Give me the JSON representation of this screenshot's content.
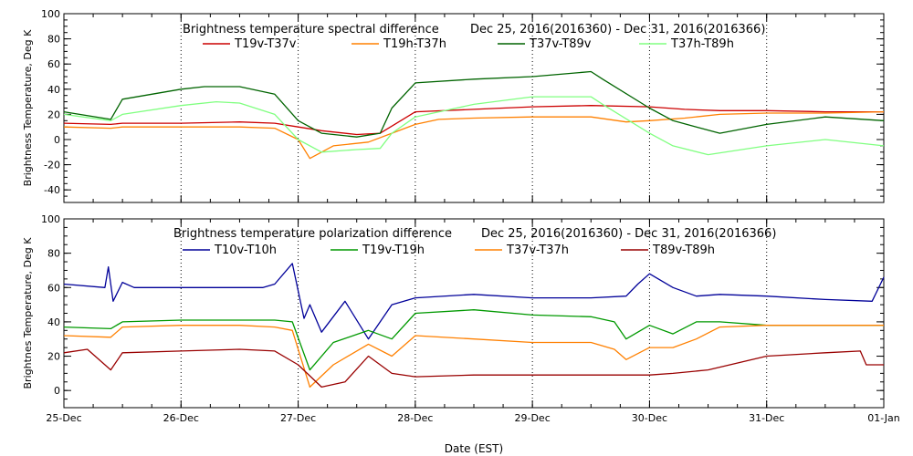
{
  "figure": {
    "xlabel": "Date (EST)"
  },
  "chart_data": [
    {
      "type": "line",
      "title": "Brightness temperature spectral difference",
      "date_range": "Dec 25, 2016(2016360) - Dec 31, 2016(2016366)",
      "ylabel": "Brightness Temperature, Deg K",
      "xlabel": "",
      "ylim": [
        -50,
        100
      ],
      "yticks": [
        -40,
        -20,
        0,
        20,
        40,
        60,
        80,
        100
      ],
      "xlim": [
        0,
        7
      ],
      "xticks": [
        0,
        1,
        2,
        3,
        4,
        5,
        6,
        7
      ],
      "xtick_labels": [
        "25-Dec",
        "26-Dec",
        "27-Dec",
        "28-Dec",
        "29-Dec",
        "30-Dec",
        "31-Dec",
        "01-Jan"
      ],
      "grid": "vertical dotted at day boundaries",
      "legend_position": "top",
      "series": [
        {
          "name": "T19v-T37v",
          "color": "#cc0000",
          "x": [
            0,
            0.4,
            0.5,
            1.0,
            1.5,
            1.8,
            2.0,
            2.2,
            2.5,
            2.7,
            3.0,
            3.5,
            4.0,
            4.5,
            5.0,
            5.3,
            5.6,
            6.0,
            6.5,
            7.0
          ],
          "y": [
            13,
            12,
            13,
            13,
            14,
            13,
            10,
            7,
            4,
            5,
            22,
            24,
            26,
            27,
            26,
            24,
            23,
            23,
            22,
            22
          ]
        },
        {
          "name": "T19h-T37h",
          "color": "#ff8000",
          "x": [
            0,
            0.4,
            0.5,
            1.0,
            1.5,
            1.8,
            2.0,
            2.1,
            2.3,
            2.6,
            2.8,
            3.0,
            3.2,
            3.5,
            4.0,
            4.5,
            4.8,
            5.0,
            5.3,
            5.6,
            6.0,
            6.5,
            7.0
          ],
          "y": [
            10,
            9,
            10,
            10,
            10,
            9,
            0,
            -15,
            -5,
            -2,
            5,
            12,
            16,
            17,
            18,
            18,
            14,
            15,
            17,
            20,
            21,
            21,
            22
          ]
        },
        {
          "name": "T37v-T89v",
          "color": "#006400",
          "x": [
            0,
            0.4,
            0.5,
            1.0,
            1.2,
            1.5,
            1.8,
            2.0,
            2.2,
            2.5,
            2.7,
            2.8,
            3.0,
            3.5,
            4.0,
            4.5,
            4.6,
            5.0,
            5.2,
            5.4,
            5.6,
            6.0,
            6.5,
            7.0
          ],
          "y": [
            22,
            16,
            32,
            40,
            42,
            42,
            36,
            15,
            5,
            2,
            5,
            25,
            45,
            48,
            50,
            54,
            48,
            25,
            15,
            10,
            5,
            12,
            18,
            15
          ]
        },
        {
          "name": "T37h-T89h",
          "color": "#80ff80",
          "x": [
            0,
            0.4,
            0.5,
            1.0,
            1.3,
            1.5,
            1.8,
            2.0,
            2.2,
            2.5,
            2.7,
            2.8,
            3.0,
            3.5,
            4.0,
            4.5,
            4.6,
            5.0,
            5.2,
            5.5,
            6.0,
            6.5,
            7.0
          ],
          "y": [
            20,
            15,
            20,
            27,
            30,
            29,
            20,
            0,
            -10,
            -8,
            -7,
            5,
            18,
            28,
            34,
            34,
            28,
            5,
            -5,
            -12,
            -5,
            0,
            -5
          ]
        }
      ]
    },
    {
      "type": "line",
      "title": "Brightness temperature polarization difference",
      "date_range": "Dec 25, 2016(2016360) - Dec 31, 2016(2016366)",
      "ylabel": "Brightnes Temperature, Deg K",
      "xlabel": "Date (EST)",
      "ylim": [
        -10,
        100
      ],
      "yticks": [
        0,
        20,
        40,
        60,
        80,
        100
      ],
      "xlim": [
        0,
        7
      ],
      "xticks": [
        0,
        1,
        2,
        3,
        4,
        5,
        6,
        7
      ],
      "xtick_labels": [
        "25-Dec",
        "26-Dec",
        "27-Dec",
        "28-Dec",
        "29-Dec",
        "30-Dec",
        "31-Dec",
        "01-Jan"
      ],
      "grid": "vertical dotted at day boundaries",
      "legend_position": "top",
      "series": [
        {
          "name": "T10v-T10h",
          "color": "#000099",
          "x": [
            0,
            0.35,
            0.38,
            0.42,
            0.5,
            0.6,
            1.0,
            1.5,
            1.7,
            1.8,
            1.95,
            2.05,
            2.1,
            2.2,
            2.4,
            2.6,
            2.8,
            3.0,
            3.5,
            4.0,
            4.5,
            4.8,
            4.9,
            5.0,
            5.2,
            5.4,
            5.6,
            6.0,
            6.5,
            6.9,
            7.0
          ],
          "y": [
            62,
            60,
            72,
            52,
            63,
            60,
            60,
            60,
            60,
            62,
            74,
            42,
            50,
            34,
            52,
            30,
            50,
            54,
            56,
            54,
            54,
            55,
            62,
            68,
            60,
            55,
            56,
            55,
            53,
            52,
            66
          ]
        },
        {
          "name": "T19v-T19h",
          "color": "#009900",
          "x": [
            0,
            0.4,
            0.5,
            1.0,
            1.5,
            1.8,
            1.95,
            2.1,
            2.3,
            2.6,
            2.8,
            3.0,
            3.5,
            4.0,
            4.5,
            4.7,
            4.8,
            5.0,
            5.2,
            5.4,
            5.6,
            6.0,
            6.5,
            7.0
          ],
          "y": [
            37,
            36,
            40,
            41,
            41,
            41,
            40,
            12,
            28,
            35,
            30,
            45,
            47,
            44,
            43,
            40,
            30,
            38,
            33,
            40,
            40,
            38,
            38,
            38
          ]
        },
        {
          "name": "T37v-T37h",
          "color": "#ff8000",
          "x": [
            0,
            0.4,
            0.5,
            1.0,
            1.5,
            1.8,
            1.95,
            2.1,
            2.3,
            2.6,
            2.8,
            3.0,
            3.5,
            4.0,
            4.5,
            4.7,
            4.8,
            5.0,
            5.2,
            5.4,
            5.6,
            6.0,
            6.5,
            7.0
          ],
          "y": [
            32,
            31,
            37,
            38,
            38,
            37,
            35,
            2,
            15,
            27,
            20,
            32,
            30,
            28,
            28,
            24,
            18,
            25,
            25,
            30,
            37,
            38,
            38,
            38
          ]
        },
        {
          "name": "T89v-T89h",
          "color": "#990000",
          "x": [
            0,
            0.2,
            0.4,
            0.5,
            1.0,
            1.5,
            1.8,
            2.0,
            2.2,
            2.4,
            2.6,
            2.8,
            3.0,
            3.5,
            4.0,
            4.5,
            5.0,
            5.2,
            5.5,
            6.0,
            6.5,
            6.8,
            6.85,
            7.0
          ],
          "y": [
            22,
            24,
            12,
            22,
            23,
            24,
            23,
            15,
            2,
            5,
            20,
            10,
            8,
            9,
            9,
            9,
            9,
            10,
            12,
            20,
            22,
            23,
            15,
            15
          ]
        }
      ]
    }
  ]
}
